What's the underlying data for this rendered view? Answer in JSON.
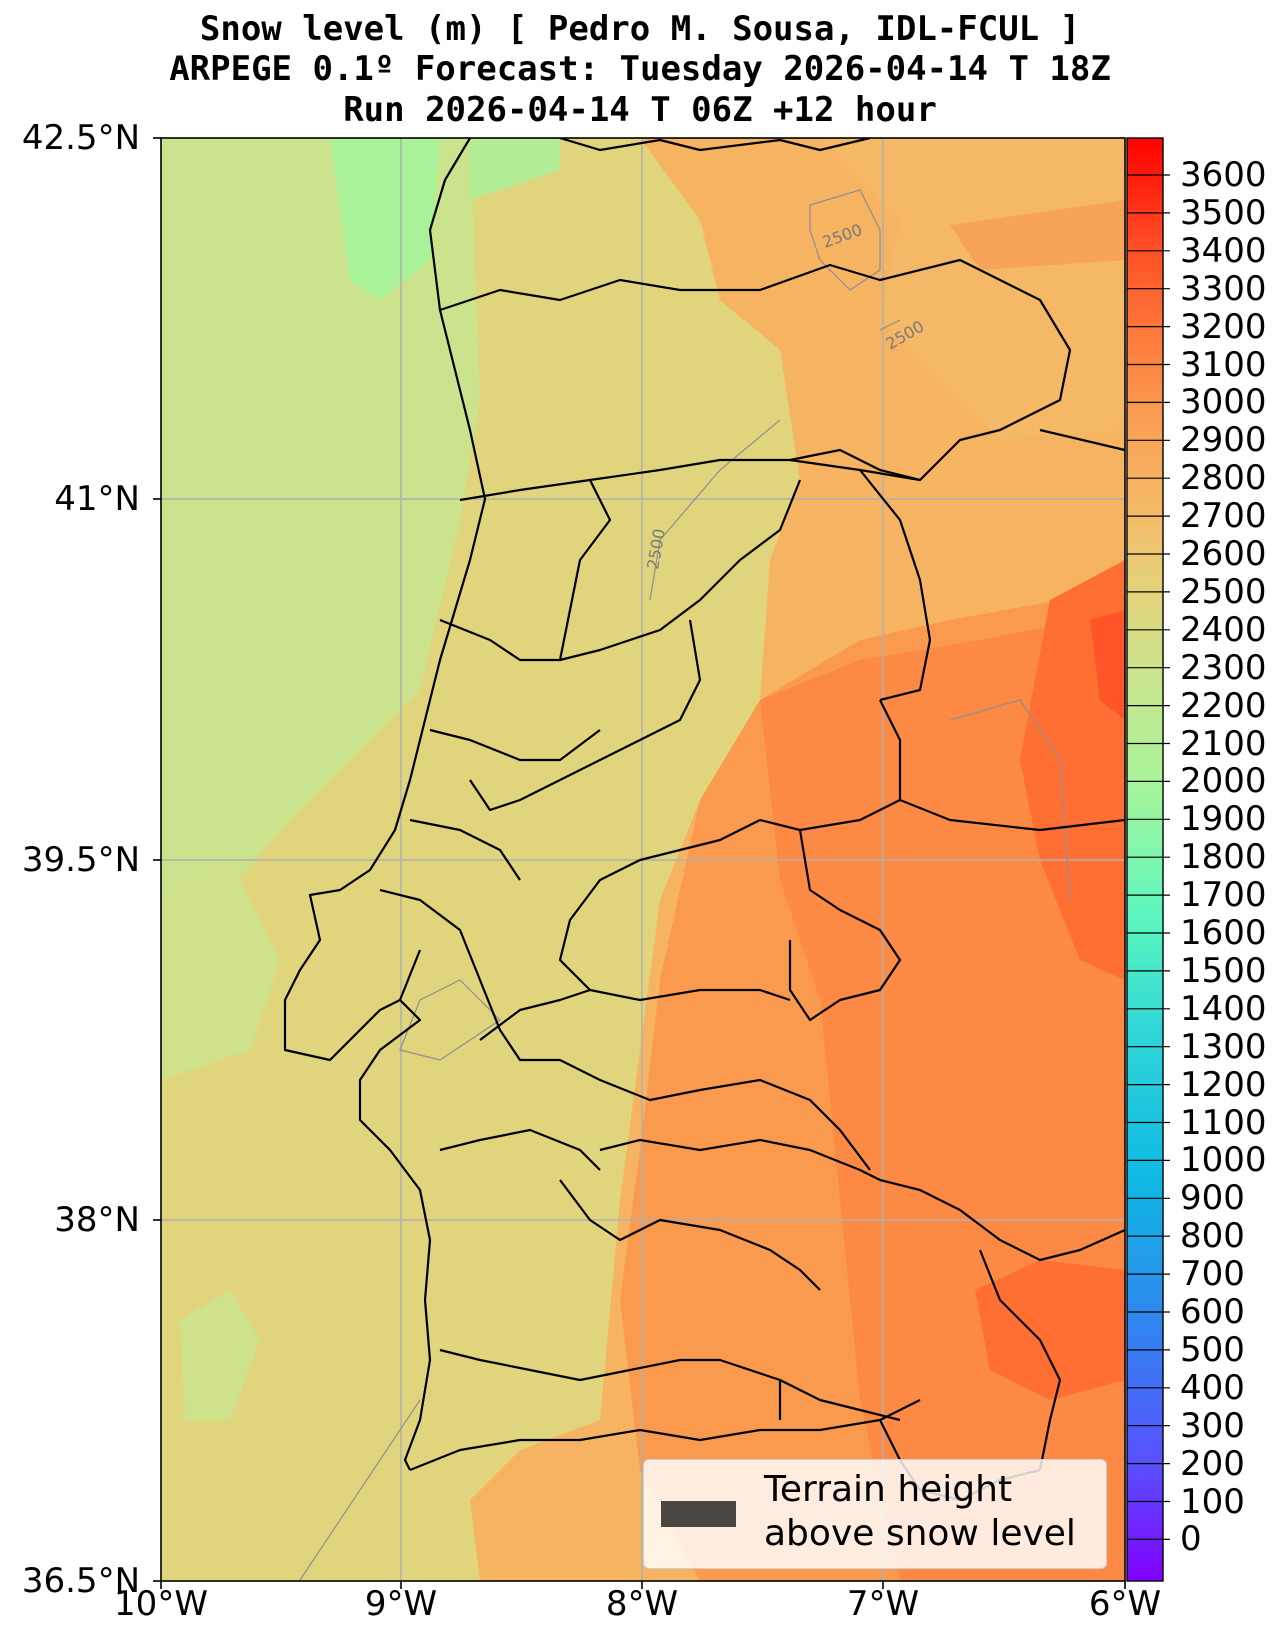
{
  "title": {
    "line1": "Snow level (m) [ Pedro M. Sousa, IDL-FCUL ]",
    "line2": "ARPEGE 0.1º Forecast: Tuesday 2026-04-14 T 18Z",
    "line3": "Run 2026-04-14 T 06Z +12 hour"
  },
  "axes": {
    "lat_ticks": [
      "42.5°N",
      "41°N",
      "39.5°N",
      "38°N",
      "36.5°N"
    ],
    "lon_ticks": [
      "10°W",
      "9°W",
      "8°W",
      "7°W",
      "6°W"
    ]
  },
  "colorbar": {
    "ticks": [
      "3600",
      "3500",
      "3400",
      "3300",
      "3200",
      "3100",
      "3000",
      "2900",
      "2800",
      "2700",
      "2600",
      "2500",
      "2400",
      "2300",
      "2200",
      "2100",
      "2000",
      "1900",
      "1800",
      "1700",
      "1600",
      "1500",
      "1400",
      "1300",
      "1200",
      "1100",
      "1000",
      "900",
      "800",
      "700",
      "600",
      "500",
      "400",
      "300",
      "200",
      "100",
      "0"
    ],
    "colors": {
      "top": "#ff0000",
      "orange": "#fe8a42",
      "light_orange": "#f6b161",
      "tan": "#e0d57d",
      "light_green": "#c8e38a",
      "green": "#a6f59a",
      "cyan": "#3ce6d0",
      "blue": "#2c8be8",
      "bottom": "#8000ff"
    }
  },
  "contour_labels": [
    "2500",
    "2500",
    "2500"
  ],
  "legend": {
    "label_line1": "Terrain height",
    "label_line2": "above snow level",
    "swatch_color": "#4a4541"
  }
}
